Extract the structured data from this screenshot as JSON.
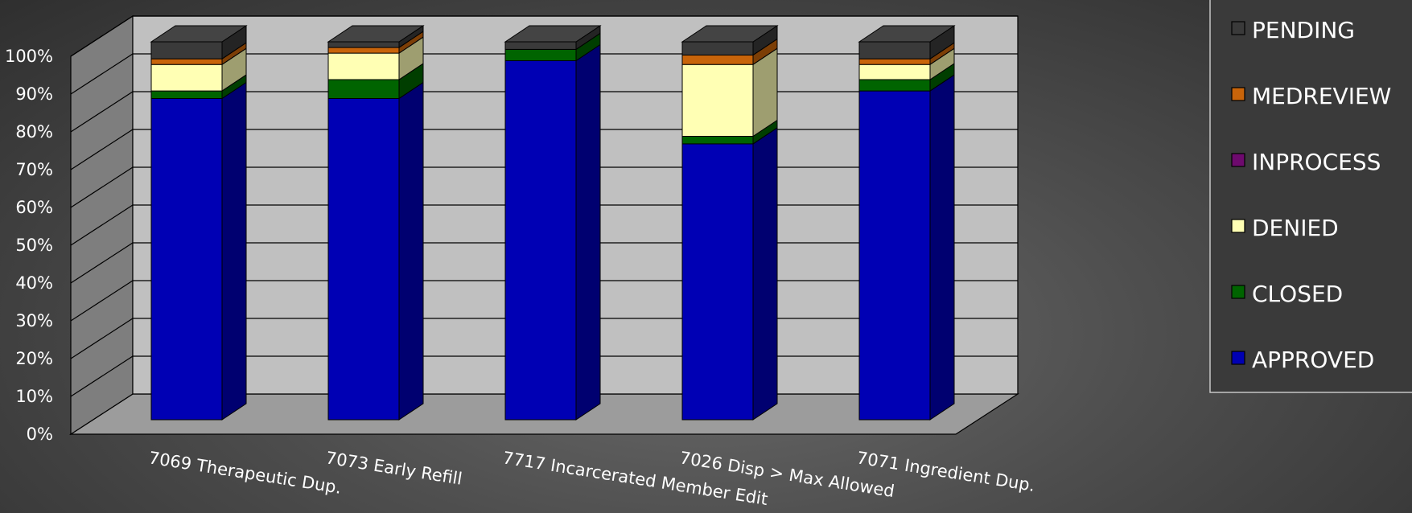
{
  "chart_data": {
    "type": "bar",
    "stacked": true,
    "percent": true,
    "three_d": true,
    "title": "",
    "xlabel": "",
    "ylabel": "",
    "ylim": [
      0,
      100
    ],
    "yticks": [
      "0%",
      "10%",
      "20%",
      "30%",
      "40%",
      "50%",
      "60%",
      "70%",
      "80%",
      "90%",
      "100%"
    ],
    "grid": true,
    "legend_position": "right",
    "categories": [
      "7069 Therapeutic Dup.",
      "7073  Early Refill",
      "7717  Incarcerated Member Edit",
      "7026  Disp > Max Allowed",
      "7071  Ingredient Dup."
    ],
    "series": [
      {
        "name": "APPROVED",
        "color": "#0000b4",
        "values": [
          85,
          85,
          95,
          73,
          87
        ]
      },
      {
        "name": "CLOSED",
        "color": "#006400",
        "values": [
          2,
          5,
          3,
          2,
          3
        ]
      },
      {
        "name": "DENIED",
        "color": "#ffffb4",
        "values": [
          7,
          7,
          0,
          19,
          4
        ]
      },
      {
        "name": "INPROCESS",
        "color": "#6e0a6e",
        "values": [
          0,
          0,
          0,
          0,
          0
        ]
      },
      {
        "name": "MEDREVIEW",
        "color": "#c8640a",
        "values": [
          1.5,
          1.5,
          0,
          2.5,
          1.5
        ]
      },
      {
        "name": "PENDING",
        "color": "#3a3a3a",
        "values": [
          4.5,
          1.5,
          2,
          3.5,
          4.5
        ]
      }
    ],
    "legend_order": [
      "PENDING",
      "MEDREVIEW",
      "INPROCESS",
      "DENIED",
      "CLOSED",
      "APPROVED"
    ]
  }
}
